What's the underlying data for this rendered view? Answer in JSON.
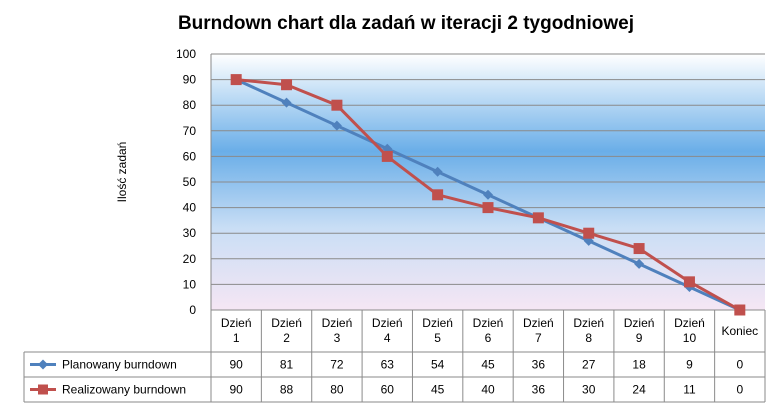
{
  "chart_data": {
    "type": "line",
    "title": "Burndown chart dla zadań w iteracji 2 tygodniowej",
    "ylabel": "Ilość zadań",
    "ylim": [
      0,
      100
    ],
    "yticks": [
      0,
      10,
      20,
      30,
      40,
      50,
      60,
      70,
      80,
      90,
      100
    ],
    "grid": true,
    "legend": "data-table",
    "categories": [
      [
        "Dzień",
        "1"
      ],
      [
        "Dzień",
        "2"
      ],
      [
        "Dzień",
        "3"
      ],
      [
        "Dzień",
        "4"
      ],
      [
        "Dzień",
        "5"
      ],
      [
        "Dzień",
        "6"
      ],
      [
        "Dzień",
        "7"
      ],
      [
        "Dzień",
        "8"
      ],
      [
        "Dzień",
        "9"
      ],
      [
        "Dzień",
        "10"
      ],
      [
        "Koniec"
      ]
    ],
    "series": [
      {
        "name": "Planowany burndown",
        "color": "#4F81BD",
        "marker": "diamond",
        "values": [
          90,
          81,
          72,
          63,
          54,
          45,
          36,
          27,
          18,
          9,
          0
        ]
      },
      {
        "name": "Realizowany burndown",
        "color": "#C0504D",
        "marker": "square",
        "values": [
          90,
          88,
          80,
          60,
          45,
          40,
          36,
          30,
          24,
          11,
          0
        ]
      }
    ]
  }
}
